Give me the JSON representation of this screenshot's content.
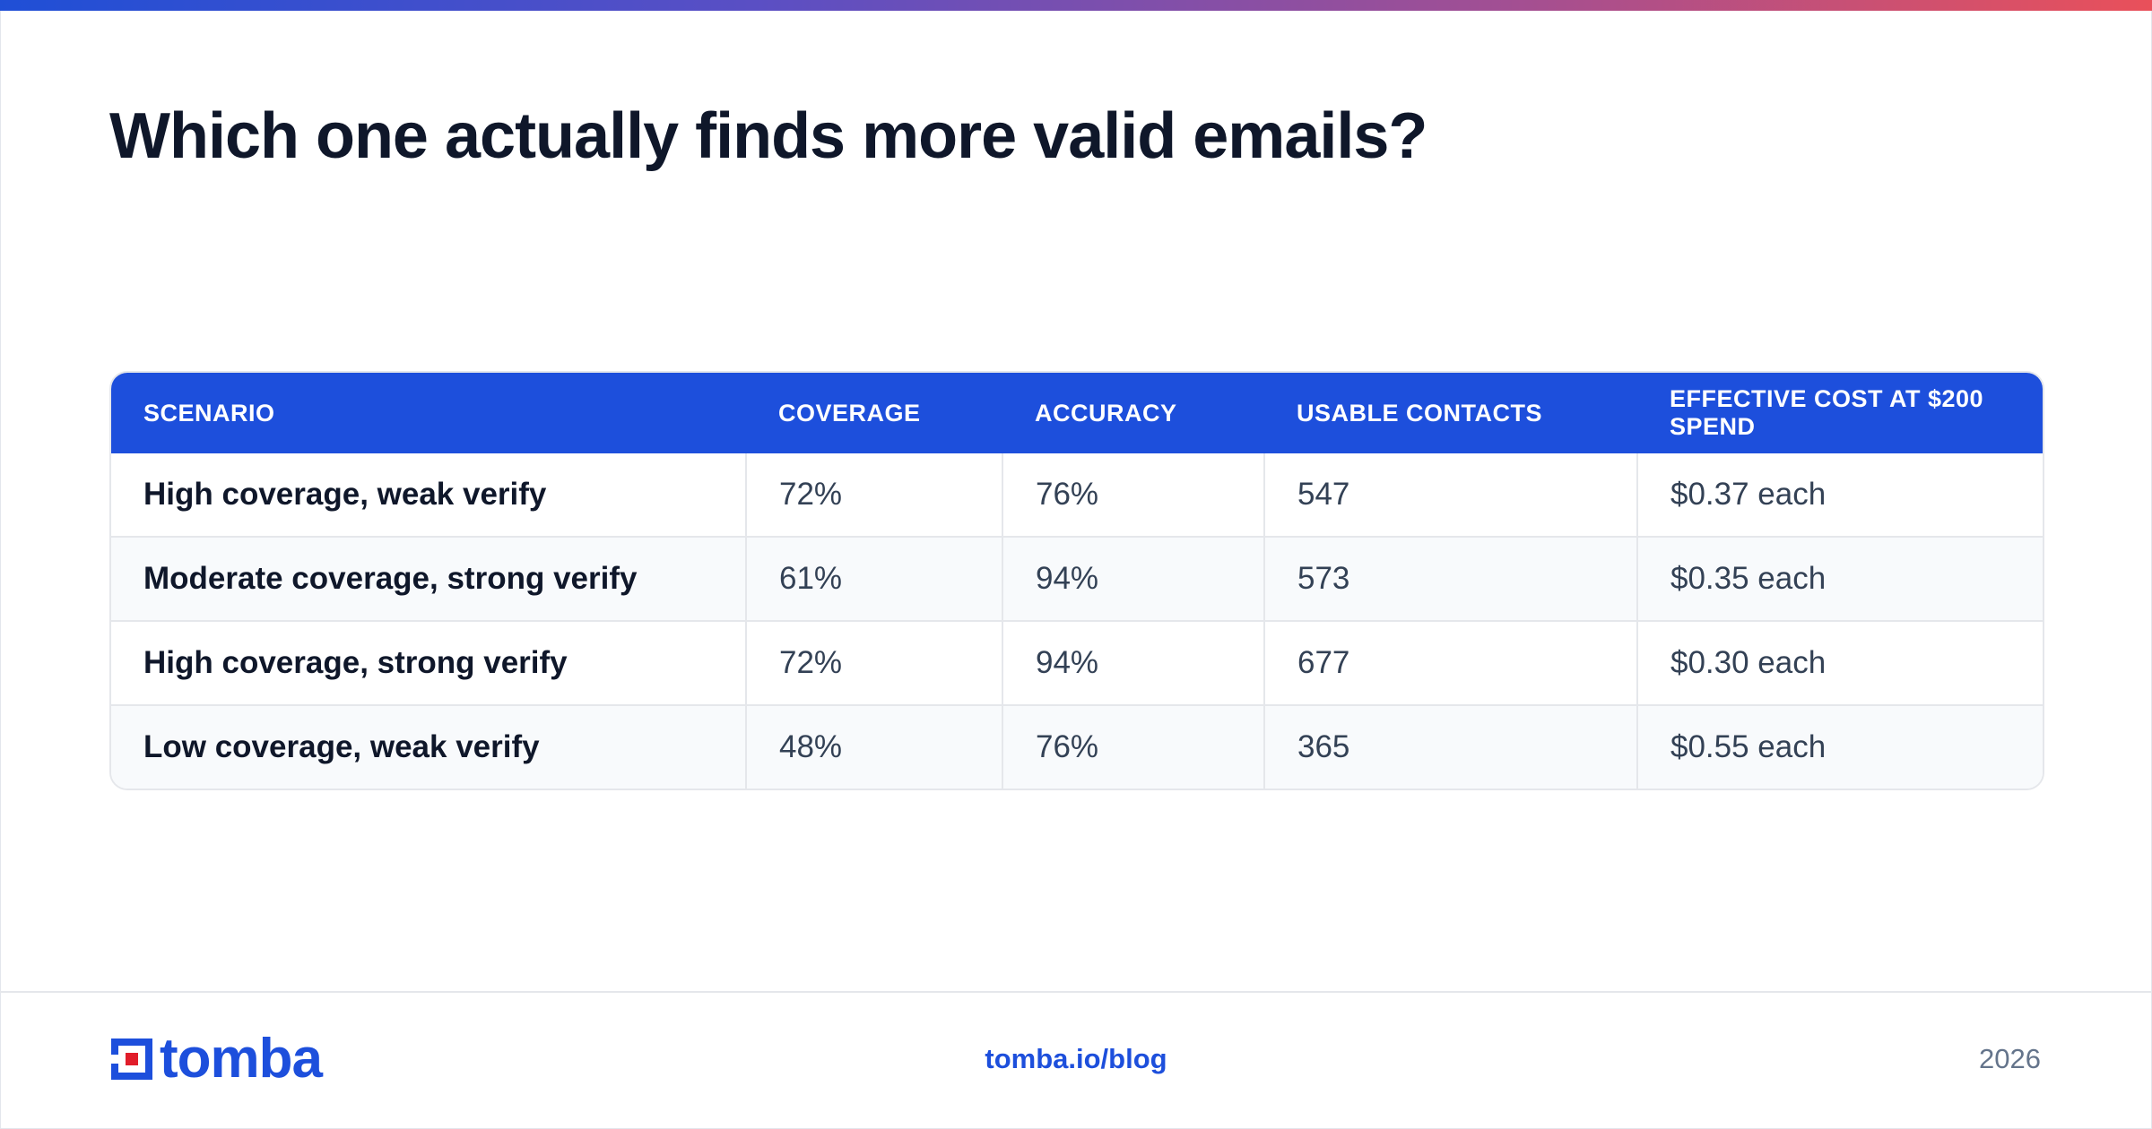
{
  "header": {
    "title": "Which one actually finds more valid emails?"
  },
  "table": {
    "columns": [
      "SCENARIO",
      "COVERAGE",
      "ACCURACY",
      "USABLE CONTACTS",
      "EFFECTIVE COST AT $200 SPEND"
    ],
    "rows": [
      [
        "High coverage, weak verify",
        "72%",
        "76%",
        "547",
        "$0.37 each"
      ],
      [
        "Moderate coverage, strong verify",
        "61%",
        "94%",
        "573",
        "$0.35 each"
      ],
      [
        "High coverage, strong verify",
        "72%",
        "94%",
        "677",
        "$0.30 each"
      ],
      [
        "Low coverage, weak verify",
        "48%",
        "76%",
        "365",
        "$0.55 each"
      ]
    ]
  },
  "footer": {
    "logo_text": "tomba",
    "link": "tomba.io/blog",
    "year": "2026"
  },
  "colors": {
    "accent": "#1d4fdc",
    "logo_red": "#e11d2a",
    "title": "#0f172a"
  }
}
